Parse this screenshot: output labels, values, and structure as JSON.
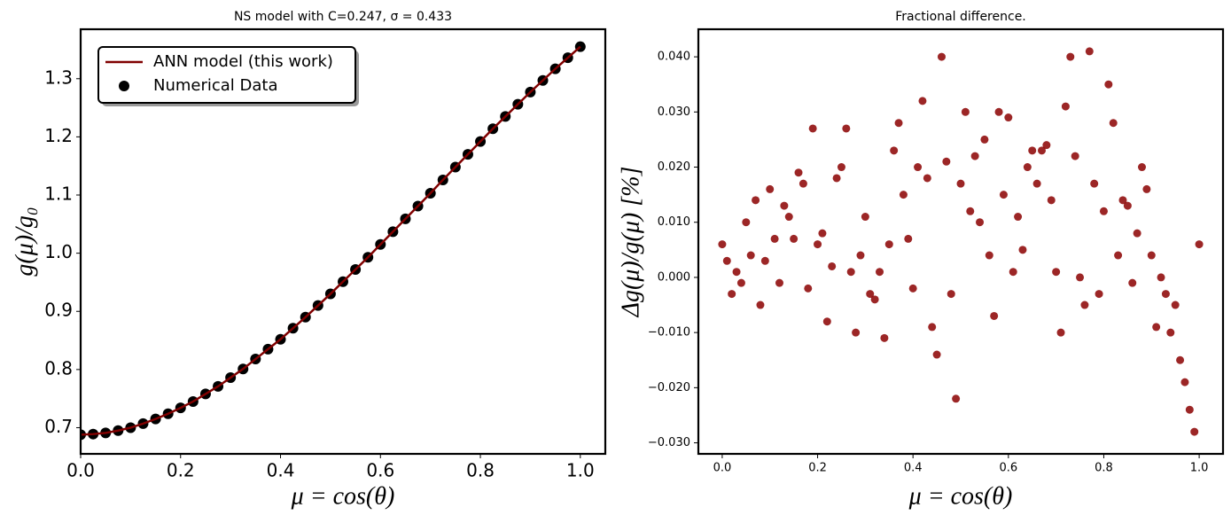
{
  "chart_data": [
    {
      "type": "line",
      "title": "NS model with C=0.247, σ = 0.433",
      "xlabel": "μ = cos(θ)",
      "ylabel": "g(μ)/g₀",
      "xlim": [
        0,
        1.05
      ],
      "ylim": [
        0.655,
        1.385
      ],
      "xticks": [
        {
          "value": 0,
          "label": "0.0"
        },
        0.2,
        0.4,
        0.6,
        0.8,
        {
          "value": 1,
          "label": "1.0"
        }
      ],
      "yticks": [
        0.7,
        0.8,
        0.9,
        {
          "value": 1,
          "label": "1.0"
        },
        1.1,
        1.2,
        1.3
      ],
      "legend": "upper left",
      "x": [
        0,
        0.025,
        0.05,
        0.075,
        0.1,
        0.125,
        0.15,
        0.175,
        0.2,
        0.225,
        0.25,
        0.275,
        0.3,
        0.325,
        0.35,
        0.375,
        0.4,
        0.425,
        0.45,
        0.475,
        0.5,
        0.525,
        0.55,
        0.575,
        0.6,
        0.625,
        0.65,
        0.675,
        0.7,
        0.725,
        0.75,
        0.775,
        0.8,
        0.825,
        0.85,
        0.875,
        0.9,
        0.925,
        0.95,
        0.975,
        1.0
      ],
      "series": [
        {
          "name": "ANN model (this work)",
          "kind": "line",
          "color": "#800000",
          "values": [
            0.688,
            0.689,
            0.691,
            0.695,
            0.7,
            0.707,
            0.715,
            0.724,
            0.734,
            0.745,
            0.758,
            0.771,
            0.786,
            0.801,
            0.818,
            0.835,
            0.852,
            0.871,
            0.89,
            0.91,
            0.93,
            0.951,
            0.972,
            0.993,
            1.015,
            1.037,
            1.059,
            1.081,
            1.103,
            1.126,
            1.148,
            1.17,
            1.192,
            1.214,
            1.235,
            1.256,
            1.277,
            1.297,
            1.317,
            1.336,
            1.355
          ]
        },
        {
          "name": "Numerical Data",
          "kind": "scatter",
          "color": "#000000",
          "values": [
            0.688,
            0.689,
            0.691,
            0.695,
            0.7,
            0.707,
            0.715,
            0.724,
            0.734,
            0.745,
            0.758,
            0.771,
            0.786,
            0.801,
            0.818,
            0.835,
            0.852,
            0.871,
            0.89,
            0.91,
            0.93,
            0.951,
            0.972,
            0.993,
            1.015,
            1.037,
            1.059,
            1.081,
            1.103,
            1.126,
            1.148,
            1.17,
            1.192,
            1.214,
            1.235,
            1.256,
            1.277,
            1.297,
            1.317,
            1.336,
            1.355
          ]
        }
      ]
    },
    {
      "type": "scatter",
      "title": "Fractional difference.",
      "xlabel": "μ = cos(θ)",
      "ylabel": "Δg(μ)/g(μ) [%]",
      "xlim": [
        -0.05,
        1.05
      ],
      "ylim": [
        -0.032,
        0.045
      ],
      "xticks": [
        {
          "value": 0,
          "label": "0.0"
        },
        0.2,
        0.4,
        0.6,
        0.8,
        {
          "value": 1,
          "label": "1.0"
        }
      ],
      "yticks": [
        {
          "value": -0.03,
          "label": "−0.030"
        },
        {
          "value": -0.02,
          "label": "−0.020"
        },
        {
          "value": -0.01,
          "label": "−0.010"
        },
        {
          "value": 0,
          "label": "0.000"
        },
        {
          "value": 0.01,
          "label": "0.010"
        },
        {
          "value": 0.02,
          "label": "0.020"
        },
        {
          "value": 0.03,
          "label": "0.030"
        },
        {
          "value": 0.04,
          "label": "0.040"
        }
      ],
      "x": [
        0,
        0.01,
        0.02,
        0.03,
        0.04,
        0.05,
        0.06,
        0.07,
        0.08,
        0.09,
        0.1,
        0.11,
        0.12,
        0.13,
        0.14,
        0.15,
        0.16,
        0.17,
        0.18,
        0.19,
        0.2,
        0.21,
        0.22,
        0.23,
        0.24,
        0.25,
        0.26,
        0.27,
        0.28,
        0.29,
        0.3,
        0.31,
        0.32,
        0.33,
        0.34,
        0.35,
        0.36,
        0.37,
        0.38,
        0.39,
        0.4,
        0.41,
        0.42,
        0.43,
        0.44,
        0.45,
        0.46,
        0.47,
        0.48,
        0.49,
        0.5,
        0.51,
        0.52,
        0.53,
        0.54,
        0.55,
        0.56,
        0.57,
        0.58,
        0.59,
        0.6,
        0.61,
        0.62,
        0.63,
        0.64,
        0.65,
        0.66,
        0.67,
        0.68,
        0.69,
        0.7,
        0.71,
        0.72,
        0.73,
        0.74,
        0.75,
        0.76,
        0.77,
        0.78,
        0.79,
        0.8,
        0.81,
        0.82,
        0.83,
        0.84,
        0.85,
        0.86,
        0.87,
        0.88,
        0.89,
        0.9,
        0.91,
        0.92,
        0.93,
        0.94,
        0.95,
        0.96,
        0.97,
        0.98,
        0.99,
        1.0
      ],
      "series": [
        {
          "kind": "scatter",
          "color": "#8b0000",
          "values": [
            0.006,
            0.003,
            -0.003,
            0.001,
            -0.001,
            0.01,
            0.004,
            0.014,
            -0.005,
            0.003,
            0.016,
            0.007,
            -0.001,
            0.013,
            0.011,
            0.007,
            0.019,
            0.017,
            -0.002,
            0.027,
            0.006,
            0.008,
            -0.008,
            0.002,
            0.018,
            0.02,
            0.027,
            0.001,
            -0.01,
            0.004,
            0.011,
            -0.003,
            -0.004,
            0.001,
            -0.011,
            0.006,
            0.023,
            0.028,
            0.015,
            0.007,
            -0.002,
            0.02,
            0.032,
            0.018,
            -0.009,
            -0.014,
            0.04,
            0.021,
            -0.003,
            -0.022,
            0.017,
            0.03,
            0.012,
            0.022,
            0.01,
            0.025,
            0.004,
            -0.007,
            0.03,
            0.015,
            0.029,
            0.001,
            0.011,
            0.005,
            0.02,
            0.023,
            0.017,
            0.023,
            0.024,
            0.014,
            0.001,
            -0.01,
            0.031,
            0.04,
            0.022,
            0.0,
            -0.005,
            0.041,
            0.017,
            -0.003,
            0.012,
            0.035,
            0.028,
            0.004,
            0.014,
            0.013,
            -0.001,
            0.008,
            0.02,
            0.016,
            0.004,
            -0.009,
            0.0,
            -0.003,
            -0.01,
            -0.005,
            -0.015,
            -0.019,
            -0.024,
            -0.028,
            0.006
          ]
        }
      ]
    }
  ]
}
